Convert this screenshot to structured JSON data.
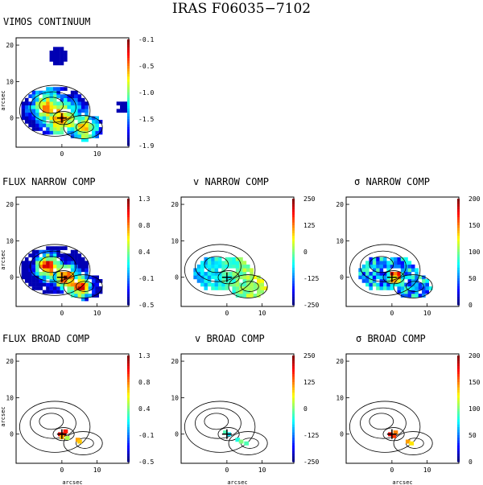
{
  "figure_title": "IRAS F06035−7102",
  "chart_data": [
    {
      "type": "heatmap",
      "title": "VIMOS CONTINUUM",
      "ylabel": "arcsec",
      "xlabel": "",
      "xticks": [
        "0",
        "10"
      ],
      "yticks": [
        "20",
        "10",
        "0"
      ],
      "colorbar_ticks": [
        "-0.1",
        "-0.5",
        "-1.0",
        "-1.5",
        "-1.9"
      ],
      "colorbar_range": [
        -1.9,
        -0.1
      ]
    },
    {
      "type": "heatmap",
      "title": "FLUX NARROW COMP",
      "ylabel": "arcsec",
      "xlabel": "",
      "xticks": [
        "0",
        "10"
      ],
      "yticks": [
        "20",
        "10",
        "0"
      ],
      "colorbar_ticks": [
        "1.3",
        "0.8",
        "0.4",
        "-0.1",
        "-0.5"
      ],
      "colorbar_range": [
        -0.5,
        1.3
      ]
    },
    {
      "type": "heatmap",
      "title": "v NARROW COMP",
      "title_symbol": "v",
      "title_rest": "NARROW COMP",
      "ylabel": "",
      "xlabel": "",
      "xticks": [
        "0",
        "10"
      ],
      "yticks": [
        "20",
        "10",
        "0"
      ],
      "colorbar_ticks": [
        "250",
        "125",
        "0",
        "-125",
        "-250"
      ],
      "colorbar_range": [
        -250,
        250
      ]
    },
    {
      "type": "heatmap",
      "title": "σ NARROW COMP",
      "title_symbol": "σ",
      "title_rest": "NARROW COMP",
      "ylabel": "",
      "xlabel": "",
      "xticks": [
        "0",
        "10"
      ],
      "yticks": [
        "20",
        "10",
        "0"
      ],
      "colorbar_ticks": [
        "200",
        "150",
        "100",
        "50",
        "0"
      ],
      "colorbar_range": [
        0,
        200
      ]
    },
    {
      "type": "heatmap",
      "title": "FLUX BROAD COMP",
      "ylabel": "arcsec",
      "xlabel": "arcsec",
      "xticks": [
        "0",
        "10"
      ],
      "yticks": [
        "20",
        "10",
        "0"
      ],
      "colorbar_ticks": [
        "1.3",
        "0.8",
        "0.4",
        "-0.1",
        "-0.5"
      ],
      "colorbar_range": [
        -0.5,
        1.3
      ]
    },
    {
      "type": "heatmap",
      "title": "v BROAD COMP",
      "title_symbol": "v",
      "title_rest": "BROAD COMP",
      "ylabel": "",
      "xlabel": "arcsec",
      "xticks": [
        "0",
        "10"
      ],
      "yticks": [
        "20",
        "10",
        "0"
      ],
      "colorbar_ticks": [
        "250",
        "125",
        "0",
        "-125",
        "-250"
      ],
      "colorbar_range": [
        -250,
        250
      ]
    },
    {
      "type": "heatmap",
      "title": "σ BROAD COMP",
      "title_symbol": "σ",
      "title_rest": "BROAD COMP",
      "ylabel": "",
      "xlabel": "arcsec",
      "xticks": [
        "0",
        "10"
      ],
      "yticks": [
        "20",
        "10",
        "0"
      ],
      "colorbar_ticks": [
        "200",
        "150",
        "100",
        "50",
        "0"
      ],
      "colorbar_range": [
        0,
        200
      ]
    }
  ]
}
